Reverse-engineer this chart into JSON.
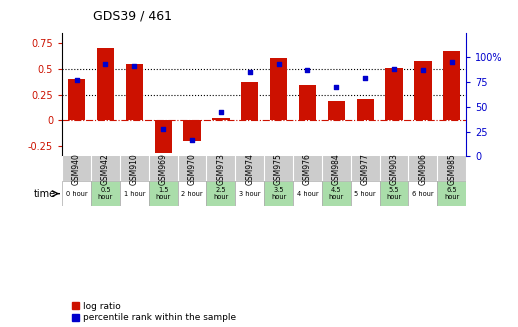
{
  "title": "GDS39 / 461",
  "samples": [
    "GSM940",
    "GSM942",
    "GSM910",
    "GSM969",
    "GSM970",
    "GSM973",
    "GSM974",
    "GSM975",
    "GSM976",
    "GSM984",
    "GSM977",
    "GSM903",
    "GSM906",
    "GSM985"
  ],
  "time_labels": [
    "0 hour",
    "0.5\nhour",
    "1 hour",
    "1.5\nhour",
    "2 hour",
    "2.5\nhour",
    "3 hour",
    "3.5\nhour",
    "4 hour",
    "4.5\nhour",
    "5 hour",
    "5.5\nhour",
    "6 hour",
    "6.5\nhour"
  ],
  "log_ratio": [
    0.4,
    0.7,
    0.55,
    -0.32,
    -0.2,
    0.02,
    0.37,
    0.6,
    0.34,
    0.19,
    0.21,
    0.51,
    0.58,
    0.67
  ],
  "percentile": [
    77,
    93,
    91,
    28,
    17,
    45,
    85,
    93,
    87,
    70,
    79,
    88,
    87,
    95
  ],
  "bar_color": "#cc1100",
  "dot_color": "#0000cc",
  "bg_color": "#ffffff",
  "zero_line_color": "#cc1100",
  "ylim_left": [
    -0.35,
    0.85
  ],
  "ylim_right": [
    0,
    125
  ],
  "yticks_left": [
    -0.25,
    0,
    0.25,
    0.5,
    0.75
  ],
  "yticks_right": [
    0,
    25,
    50,
    75,
    100
  ],
  "hline_values": [
    0.25,
    0.5
  ],
  "legend_log_ratio": "log ratio",
  "legend_percentile": "percentile rank within the sample",
  "time_arrow_label": "time",
  "label_bg": "#cccccc",
  "white_cell": "#ffffff",
  "green_cell": "#aaddaa",
  "bar_width": 0.6
}
